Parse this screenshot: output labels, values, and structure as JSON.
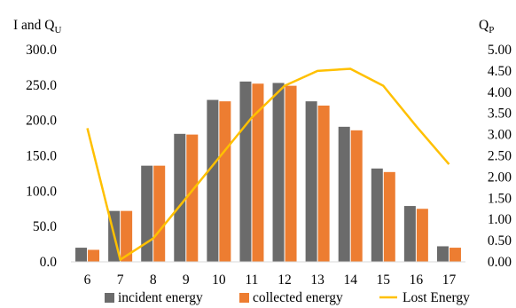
{
  "chart_data": {
    "type": "bar",
    "left_axis_title": {
      "main": "I and Q",
      "sub": "U"
    },
    "right_axis_title": {
      "main": "Q",
      "sub": "P"
    },
    "categories": [
      "6",
      "7",
      "8",
      "9",
      "10",
      "11",
      "12",
      "13",
      "14",
      "15",
      "16",
      "17"
    ],
    "series": [
      {
        "name": "incident energy",
        "type": "bar",
        "axis": "left",
        "color": "#6b6b6b",
        "values": [
          20,
          72,
          136,
          181,
          229,
          255,
          253,
          227,
          191,
          132,
          79,
          22
        ]
      },
      {
        "name": "collected energy",
        "type": "bar",
        "axis": "left",
        "color": "#ed7d31",
        "values": [
          17,
          72,
          136,
          180,
          227,
          252,
          249,
          221,
          186,
          127,
          75,
          20
        ]
      },
      {
        "name": "Lost Energy",
        "type": "line",
        "axis": "right",
        "color": "#ffc000",
        "values": [
          3.15,
          0.05,
          0.55,
          1.5,
          2.45,
          3.4,
          4.15,
          4.5,
          4.55,
          4.15,
          3.2,
          2.3
        ]
      }
    ],
    "y_left": {
      "min": 0,
      "max": 300,
      "ticks": [
        "0.0",
        "50.0",
        "100.0",
        "150.0",
        "200.0",
        "250.0",
        "300.0"
      ]
    },
    "y_right": {
      "min": 0,
      "max": 5,
      "ticks": [
        "0.00",
        "0.50",
        "1.00",
        "1.50",
        "2.00",
        "2.50",
        "3.00",
        "3.50",
        "4.00",
        "4.50",
        "5.00"
      ]
    },
    "grid": false,
    "legend_position": "bottom"
  }
}
